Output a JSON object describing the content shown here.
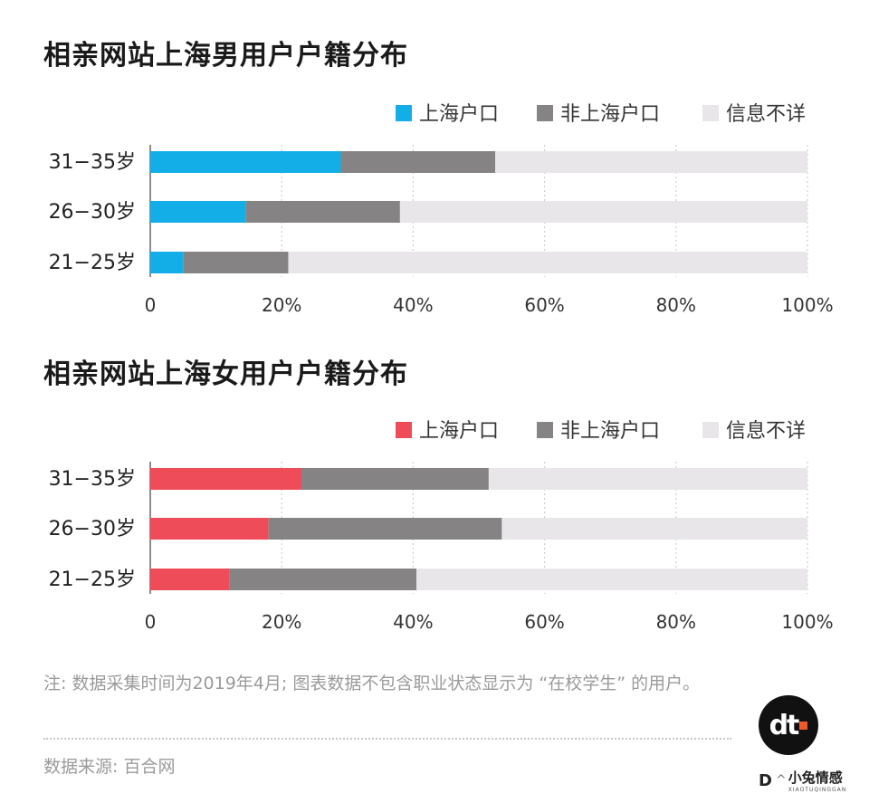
{
  "chart_data": [
    {
      "type": "bar",
      "orientation": "horizontal",
      "stacked": true,
      "title": "相亲网站上海男用户户籍分布",
      "categories": [
        "31−35岁",
        "26−30岁",
        "21−25岁"
      ],
      "series": [
        {
          "name": "上海户口",
          "color": "#13aee8",
          "values": [
            29,
            14.5,
            5
          ]
        },
        {
          "name": "非上海户口",
          "color": "#858383",
          "values": [
            23.5,
            23.5,
            16
          ]
        },
        {
          "name": "信息不详",
          "color": "#e9e6ea",
          "values": [
            47.5,
            62,
            79
          ]
        }
      ],
      "xlim": [
        0,
        100
      ],
      "xticks": [
        "0",
        "20%",
        "40%",
        "60%",
        "80%",
        "100%"
      ],
      "grid": "vertical dotted",
      "legend": "top-right"
    },
    {
      "type": "bar",
      "orientation": "horizontal",
      "stacked": true,
      "title": "相亲网站上海女用户户籍分布",
      "categories": [
        "31−35岁",
        "26−30岁",
        "21−25岁"
      ],
      "series": [
        {
          "name": "上海户口",
          "color": "#ef4c5a",
          "values": [
            23,
            18,
            12
          ]
        },
        {
          "name": "非上海户口",
          "color": "#858383",
          "values": [
            28.5,
            35.5,
            28.5
          ]
        },
        {
          "name": "信息不详",
          "color": "#e9e6ea",
          "values": [
            48.5,
            46.5,
            59.5
          ]
        }
      ],
      "xlim": [
        0,
        100
      ],
      "xticks": [
        "0",
        "20%",
        "40%",
        "60%",
        "80%",
        "100%"
      ],
      "grid": "vertical dotted",
      "legend": "top-right"
    }
  ],
  "footer": {
    "note": "注: 数据采集时间为2019年4月; 图表数据不包含职业状态显示为 “在校学生” 的用户。",
    "source": "数据来源: 百合网"
  },
  "logo": {
    "text": "dt",
    "dot_color": "#f05a28"
  },
  "corner": {
    "letter": "D",
    "glyph": "^",
    "brand_cn": "小兔情感",
    "brand_en": "XIAOTUQINGGAN"
  }
}
